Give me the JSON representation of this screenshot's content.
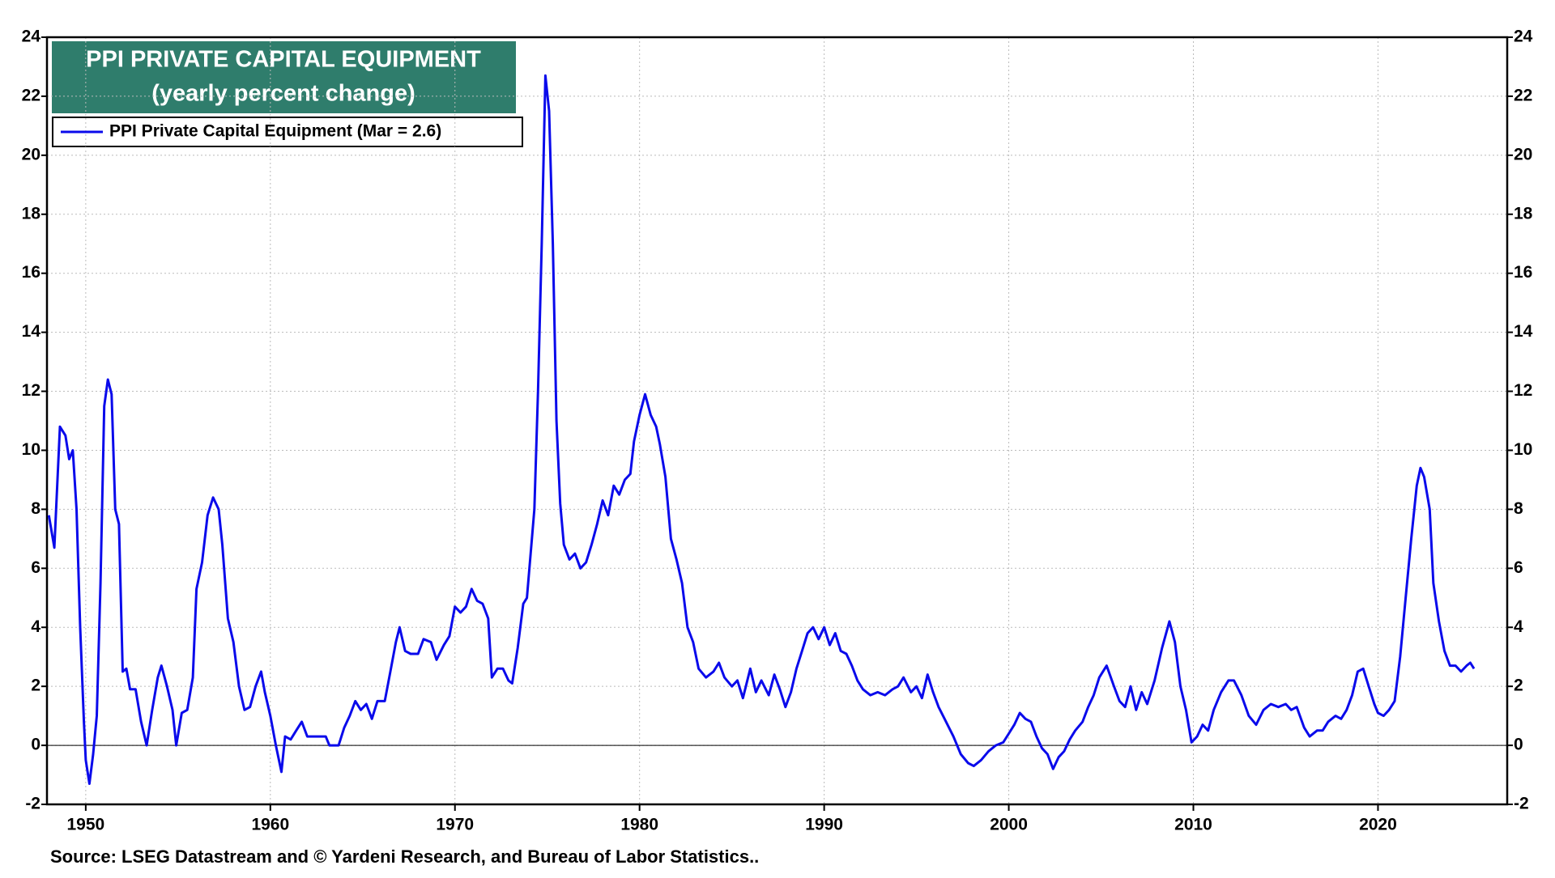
{
  "chart_data": {
    "type": "line",
    "title": "PPI PRIVATE CAPITAL EQUIPMENT",
    "subtitle": "(yearly percent change)",
    "source": "Source: LSEG Datastream and © Yardeni Research, and Bureau of Labor Statistics..",
    "x": [
      1948.0,
      1948.3,
      1948.6,
      1948.9,
      1949.1,
      1949.3,
      1949.5,
      1949.7,
      1949.9,
      1950.0,
      1950.2,
      1950.4,
      1950.6,
      1950.8,
      1951.0,
      1951.2,
      1951.4,
      1951.6,
      1951.8,
      1952.0,
      1952.2,
      1952.4,
      1952.7,
      1953.0,
      1953.3,
      1953.6,
      1953.9,
      1954.1,
      1954.4,
      1954.7,
      1954.9,
      1955.2,
      1955.5,
      1955.8,
      1956.0,
      1956.3,
      1956.6,
      1956.9,
      1957.2,
      1957.4,
      1957.7,
      1958.0,
      1958.3,
      1958.6,
      1958.9,
      1959.2,
      1959.5,
      1959.7,
      1960.0,
      1960.3,
      1960.6,
      1960.8,
      1961.1,
      1961.4,
      1961.7,
      1962.0,
      1962.5,
      1963.0,
      1963.2,
      1963.7,
      1964.0,
      1964.3,
      1964.6,
      1964.9,
      1965.2,
      1965.5,
      1965.8,
      1966.2,
      1966.5,
      1966.8,
      1967.0,
      1967.3,
      1967.6,
      1968.0,
      1968.3,
      1968.7,
      1969.0,
      1969.4,
      1969.7,
      1970.0,
      1970.3,
      1970.6,
      1970.9,
      1971.2,
      1971.5,
      1971.8,
      1972.0,
      1972.3,
      1972.6,
      1972.9,
      1973.1,
      1973.4,
      1973.7,
      1973.9,
      1974.1,
      1974.3,
      1974.5,
      1974.7,
      1974.9,
      1975.1,
      1975.3,
      1975.5,
      1975.7,
      1975.9,
      1976.2,
      1976.5,
      1976.8,
      1977.1,
      1977.4,
      1977.7,
      1978.0,
      1978.3,
      1978.6,
      1978.9,
      1979.2,
      1979.5,
      1979.7,
      1980.0,
      1980.3,
      1980.6,
      1980.9,
      1981.1,
      1981.4,
      1981.7,
      1982.0,
      1982.3,
      1982.6,
      1982.9,
      1983.2,
      1983.6,
      1984.0,
      1984.3,
      1984.6,
      1985.0,
      1985.3,
      1985.6,
      1986.0,
      1986.3,
      1986.6,
      1987.0,
      1987.3,
      1987.6,
      1987.9,
      1988.2,
      1988.5,
      1988.8,
      1989.1,
      1989.4,
      1989.7,
      1990.0,
      1990.3,
      1990.6,
      1990.9,
      1991.2,
      1991.5,
      1991.8,
      1992.1,
      1992.5,
      1992.9,
      1993.3,
      1993.7,
      1994.0,
      1994.3,
      1994.7,
      1995.0,
      1995.3,
      1995.6,
      1995.9,
      1996.2,
      1996.6,
      1997.0,
      1997.4,
      1997.8,
      1998.1,
      1998.5,
      1998.9,
      1999.3,
      1999.7,
      2000.0,
      2000.3,
      2000.6,
      2000.9,
      2001.2,
      2001.5,
      2001.8,
      2002.1,
      2002.4,
      2002.7,
      2003.0,
      2003.3,
      2003.6,
      2004.0,
      2004.3,
      2004.6,
      2004.9,
      2005.3,
      2005.7,
      2006.0,
      2006.3,
      2006.6,
      2006.9,
      2007.2,
      2007.5,
      2007.9,
      2008.3,
      2008.7,
      2009.0,
      2009.3,
      2009.6,
      2009.9,
      2010.2,
      2010.5,
      2010.8,
      2011.1,
      2011.5,
      2011.9,
      2012.2,
      2012.6,
      2013.0,
      2013.4,
      2013.8,
      2014.2,
      2014.6,
      2015.0,
      2015.3,
      2015.6,
      2016.0,
      2016.3,
      2016.7,
      2017.0,
      2017.3,
      2017.7,
      2018.0,
      2018.3,
      2018.6,
      2018.9,
      2019.2,
      2019.5,
      2019.8,
      2020.0,
      2020.3,
      2020.6,
      2020.9,
      2021.2,
      2021.5,
      2021.8,
      2022.1,
      2022.3,
      2022.5,
      2022.8,
      2023.0,
      2023.3,
      2023.6,
      2023.9,
      2024.2,
      2024.5,
      2024.8,
      2025.0,
      2025.2
    ],
    "series": [
      {
        "name": "PPI Private Capital Equipment (Mar = 2.6)",
        "color": "#0a0aeb",
        "values": [
          7.8,
          6.7,
          10.8,
          10.5,
          9.7,
          10.0,
          8.0,
          4.0,
          0.8,
          -0.5,
          -1.3,
          -0.3,
          1.0,
          5.5,
          11.5,
          12.4,
          11.9,
          8.0,
          7.5,
          2.5,
          2.6,
          1.9,
          1.9,
          0.8,
          0.0,
          1.2,
          2.3,
          2.7,
          2.0,
          1.2,
          0.0,
          1.1,
          1.2,
          2.3,
          5.3,
          6.2,
          7.8,
          8.4,
          8.0,
          6.8,
          4.3,
          3.5,
          2.0,
          1.2,
          1.3,
          2.0,
          2.5,
          1.8,
          1.0,
          0.0,
          -0.9,
          0.3,
          0.2,
          0.5,
          0.8,
          0.3,
          0.3,
          0.3,
          0.0,
          0.0,
          0.6,
          1.0,
          1.5,
          1.2,
          1.4,
          0.9,
          1.5,
          1.5,
          2.5,
          3.5,
          4.0,
          3.2,
          3.1,
          3.1,
          3.6,
          3.5,
          2.9,
          3.4,
          3.7,
          4.7,
          4.5,
          4.7,
          5.3,
          4.9,
          4.8,
          4.3,
          2.3,
          2.6,
          2.6,
          2.2,
          2.1,
          3.3,
          4.8,
          5.0,
          6.5,
          8.0,
          12.0,
          17.0,
          22.7,
          21.5,
          17.0,
          11.0,
          8.2,
          6.8,
          6.3,
          6.5,
          6.0,
          6.2,
          6.8,
          7.5,
          8.3,
          7.8,
          8.8,
          8.5,
          9.0,
          9.2,
          10.3,
          11.2,
          11.9,
          11.2,
          10.8,
          10.2,
          9.1,
          7.0,
          6.3,
          5.5,
          4.0,
          3.5,
          2.6,
          2.3,
          2.5,
          2.8,
          2.3,
          2.0,
          2.2,
          1.6,
          2.6,
          1.8,
          2.2,
          1.7,
          2.4,
          1.9,
          1.3,
          1.8,
          2.6,
          3.2,
          3.8,
          4.0,
          3.6,
          4.0,
          3.4,
          3.8,
          3.2,
          3.1,
          2.7,
          2.2,
          1.9,
          1.7,
          1.8,
          1.7,
          1.9,
          2.0,
          2.3,
          1.8,
          2.0,
          1.6,
          2.4,
          1.8,
          1.3,
          0.8,
          0.3,
          -0.3,
          -0.6,
          -0.7,
          -0.5,
          -0.2,
          0.0,
          0.1,
          0.4,
          0.7,
          1.1,
          0.9,
          0.8,
          0.3,
          -0.1,
          -0.3,
          -0.8,
          -0.4,
          -0.2,
          0.2,
          0.5,
          0.8,
          1.3,
          1.7,
          2.3,
          2.7,
          2.0,
          1.5,
          1.3,
          2.0,
          1.2,
          1.8,
          1.4,
          2.2,
          3.3,
          4.2,
          3.5,
          2.0,
          1.2,
          0.1,
          0.3,
          0.7,
          0.5,
          1.2,
          1.8,
          2.2,
          2.2,
          1.7,
          1.0,
          0.7,
          1.2,
          1.4,
          1.3,
          1.4,
          1.2,
          1.3,
          0.6,
          0.3,
          0.5,
          0.5,
          0.8,
          1.0,
          0.9,
          1.2,
          1.7,
          2.5,
          2.6,
          2.0,
          1.4,
          1.1,
          1.0,
          1.2,
          1.5,
          3.0,
          5.0,
          7.0,
          8.8,
          9.4,
          9.1,
          8.0,
          5.5,
          4.2,
          3.2,
          2.7,
          2.7,
          2.5,
          2.7,
          2.8,
          2.6
        ]
      }
    ],
    "xlim": [
      1947.9,
      2027
    ],
    "xticks": [
      1950,
      1960,
      1970,
      1980,
      1990,
      2000,
      2010,
      2020
    ],
    "ylim": [
      -2,
      24
    ],
    "yticks": [
      -2,
      0,
      2,
      4,
      6,
      8,
      10,
      12,
      14,
      16,
      18,
      20,
      22,
      24
    ],
    "y2lim": [
      -2,
      24
    ],
    "y2ticks": [
      -2,
      0,
      2,
      4,
      6,
      8,
      10,
      12,
      14,
      16,
      18,
      20,
      22,
      24
    ],
    "grid": true
  }
}
